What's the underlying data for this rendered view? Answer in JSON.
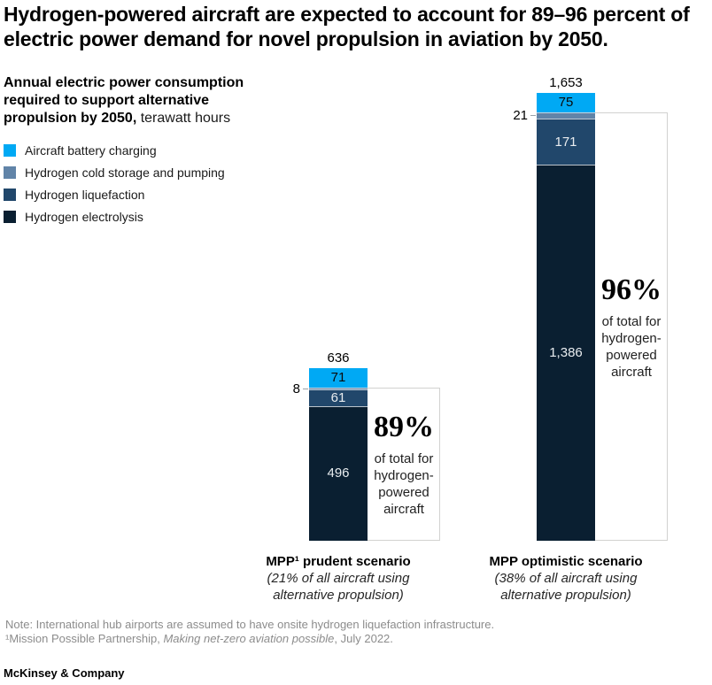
{
  "title": {
    "line1": "Hydrogen-powered aircraft are expected to account for 89–96 percent of",
    "line2": "electric power demand for novel propulsion in aviation by 2050."
  },
  "subtitle": {
    "bold": "Annual electric power consumption required to support alternative propulsion by 2050,",
    "unit": " terawatt hours"
  },
  "legend": [
    {
      "label": "Aircraft battery charging",
      "color": "#00A9F4"
    },
    {
      "label": "Hydrogen cold storage and pumping",
      "color": "#6184A8"
    },
    {
      "label": "Hydrogen liquefaction",
      "color": "#21476B"
    },
    {
      "label": "Hydrogen electrolysis",
      "color": "#0A1F31"
    }
  ],
  "chart_data": {
    "type": "bar",
    "stacked": true,
    "unit": "terawatt hours",
    "title": "Annual electric power consumption required to support alternative propulsion by 2050, terawatt hours",
    "categories": [
      "MPP¹ prudent scenario",
      "MPP optimistic scenario"
    ],
    "category_note_lines": [
      [
        "(21% of all aircraft using",
        "alternative propulsion)"
      ],
      [
        "(38% of all aircraft using",
        "alternative propulsion)"
      ]
    ],
    "series": [
      {
        "name": "Aircraft battery charging",
        "color": "#00A9F4",
        "values": [
          71,
          75
        ]
      },
      {
        "name": "Hydrogen cold storage and pumping",
        "color": "#6184A8",
        "values": [
          8,
          21
        ]
      },
      {
        "name": "Hydrogen liquefaction",
        "color": "#21476B",
        "values": [
          61,
          171
        ]
      },
      {
        "name": "Hydrogen electrolysis",
        "color": "#0A1F31",
        "values": [
          496,
          1386
        ]
      }
    ],
    "totals": [
      636,
      1653
    ],
    "legend_position": "top-left",
    "grid": false,
    "callouts": [
      {
        "pct": "89%",
        "caption_lines": [
          "of total for",
          "hydrogen-",
          "powered",
          "aircraft"
        ]
      },
      {
        "pct": "96%",
        "caption_lines": [
          "of total for",
          "hydrogen-",
          "powered",
          "aircraft"
        ]
      }
    ]
  },
  "bar_labels": {
    "prudent": {
      "total": "636",
      "battery": "71",
      "cold": "8",
      "liq": "61",
      "elec": "496"
    },
    "optimistic": {
      "total": "1,653",
      "battery": "75",
      "cold": "21",
      "liq": "171",
      "elec": "1,386"
    }
  },
  "footnote": {
    "note": "Note: International hub airports are assumed to have onsite hydrogen liquefaction infrastructure.",
    "source_prefix": "¹Mission Possible Partnership, ",
    "source_italic": "Making net-zero aviation possible",
    "source_suffix": ", July 2022."
  },
  "footer": {
    "brand": "McKinsey & Company"
  },
  "colors": {
    "box_border": "#D2D2D0",
    "footnote_gray": "#8C8C8C"
  }
}
